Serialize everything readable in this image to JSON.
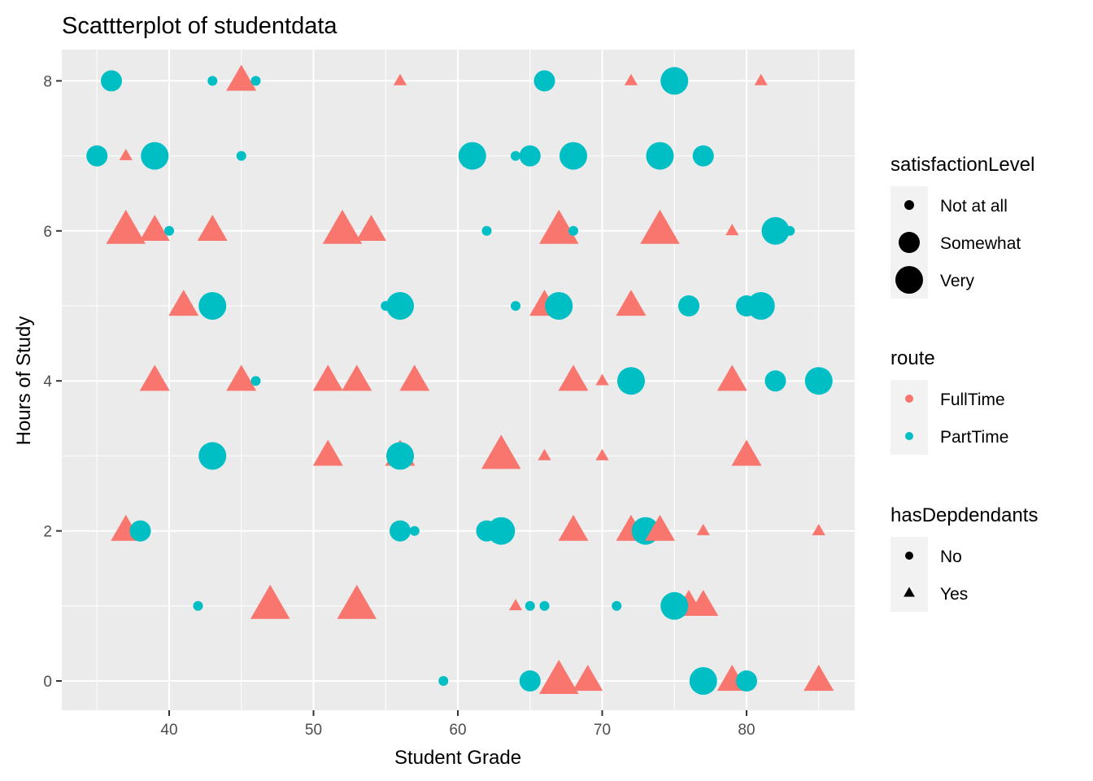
{
  "chart_data": {
    "type": "scatter",
    "title": "Scattterplot of studentdata",
    "xlabel": "Student Grade",
    "ylabel": "Hours of Study",
    "xlim": [
      32.5,
      87.5
    ],
    "ylim": [
      -0.4,
      8.4
    ],
    "xticks": [
      40,
      50,
      60,
      70,
      80
    ],
    "yticks": [
      0,
      2,
      4,
      6,
      8
    ],
    "grid": true,
    "legend_position": "right",
    "colors": {
      "FullTime": "#F8766D",
      "PartTime": "#00BFC4",
      "panel": "#EBEBEB",
      "grid": "#FFFFFF"
    },
    "legends": [
      {
        "title": "satisfactionLevel",
        "kind": "size",
        "items": [
          {
            "label": "Not at all",
            "size": "small"
          },
          {
            "label": "Somewhat",
            "size": "medium"
          },
          {
            "label": "Very",
            "size": "large"
          }
        ]
      },
      {
        "title": "route",
        "kind": "color",
        "items": [
          {
            "label": "FullTime",
            "color": "#F8766D"
          },
          {
            "label": "PartTime",
            "color": "#00BFC4"
          }
        ]
      },
      {
        "title": "hasDepdendants",
        "kind": "shape",
        "items": [
          {
            "label": "No",
            "shape": "circle"
          },
          {
            "label": "Yes",
            "shape": "triangle"
          }
        ]
      }
    ],
    "points": [
      {
        "x": 36,
        "y": 8,
        "route": "PartTime",
        "dep": "No",
        "sat": "Somewhat"
      },
      {
        "x": 43,
        "y": 8,
        "route": "PartTime",
        "dep": "No",
        "sat": "Not at all"
      },
      {
        "x": 45,
        "y": 8,
        "route": "FullTime",
        "dep": "Yes",
        "sat": "Somewhat"
      },
      {
        "x": 46,
        "y": 8,
        "route": "PartTime",
        "dep": "No",
        "sat": "Not at all"
      },
      {
        "x": 56,
        "y": 8,
        "route": "FullTime",
        "dep": "Yes",
        "sat": "Not at all"
      },
      {
        "x": 66,
        "y": 8,
        "route": "PartTime",
        "dep": "No",
        "sat": "Somewhat"
      },
      {
        "x": 72,
        "y": 8,
        "route": "FullTime",
        "dep": "Yes",
        "sat": "Not at all"
      },
      {
        "x": 75,
        "y": 8,
        "route": "PartTime",
        "dep": "No",
        "sat": "Very"
      },
      {
        "x": 81,
        "y": 8,
        "route": "FullTime",
        "dep": "Yes",
        "sat": "Not at all"
      },
      {
        "x": 35,
        "y": 7,
        "route": "PartTime",
        "dep": "No",
        "sat": "Somewhat"
      },
      {
        "x": 37,
        "y": 7,
        "route": "FullTime",
        "dep": "Yes",
        "sat": "Not at all"
      },
      {
        "x": 39,
        "y": 7,
        "route": "PartTime",
        "dep": "No",
        "sat": "Very"
      },
      {
        "x": 45,
        "y": 7,
        "route": "PartTime",
        "dep": "No",
        "sat": "Not at all"
      },
      {
        "x": 61,
        "y": 7,
        "route": "PartTime",
        "dep": "No",
        "sat": "Very"
      },
      {
        "x": 64,
        "y": 7,
        "route": "PartTime",
        "dep": "No",
        "sat": "Not at all"
      },
      {
        "x": 65,
        "y": 7,
        "route": "PartTime",
        "dep": "No",
        "sat": "Somewhat"
      },
      {
        "x": 68,
        "y": 7,
        "route": "PartTime",
        "dep": "No",
        "sat": "Very"
      },
      {
        "x": 74,
        "y": 7,
        "route": "PartTime",
        "dep": "No",
        "sat": "Very"
      },
      {
        "x": 77,
        "y": 7,
        "route": "PartTime",
        "dep": "No",
        "sat": "Somewhat"
      },
      {
        "x": 37,
        "y": 6,
        "route": "FullTime",
        "dep": "Yes",
        "sat": "Very"
      },
      {
        "x": 39,
        "y": 6,
        "route": "FullTime",
        "dep": "Yes",
        "sat": "Somewhat"
      },
      {
        "x": 40,
        "y": 6,
        "route": "PartTime",
        "dep": "No",
        "sat": "Not at all"
      },
      {
        "x": 43,
        "y": 6,
        "route": "FullTime",
        "dep": "Yes",
        "sat": "Somewhat"
      },
      {
        "x": 52,
        "y": 6,
        "route": "FullTime",
        "dep": "Yes",
        "sat": "Very"
      },
      {
        "x": 54,
        "y": 6,
        "route": "FullTime",
        "dep": "Yes",
        "sat": "Somewhat"
      },
      {
        "x": 62,
        "y": 6,
        "route": "PartTime",
        "dep": "No",
        "sat": "Not at all"
      },
      {
        "x": 67,
        "y": 6,
        "route": "FullTime",
        "dep": "Yes",
        "sat": "Very"
      },
      {
        "x": 68,
        "y": 6,
        "route": "PartTime",
        "dep": "No",
        "sat": "Not at all"
      },
      {
        "x": 74,
        "y": 6,
        "route": "FullTime",
        "dep": "Yes",
        "sat": "Very"
      },
      {
        "x": 79,
        "y": 6,
        "route": "FullTime",
        "dep": "Yes",
        "sat": "Not at all"
      },
      {
        "x": 82,
        "y": 6,
        "route": "PartTime",
        "dep": "No",
        "sat": "Very"
      },
      {
        "x": 83,
        "y": 6,
        "route": "PartTime",
        "dep": "No",
        "sat": "Not at all"
      },
      {
        "x": 41,
        "y": 5,
        "route": "FullTime",
        "dep": "Yes",
        "sat": "Somewhat"
      },
      {
        "x": 43,
        "y": 5,
        "route": "PartTime",
        "dep": "No",
        "sat": "Very"
      },
      {
        "x": 55,
        "y": 5,
        "route": "PartTime",
        "dep": "No",
        "sat": "Not at all"
      },
      {
        "x": 56,
        "y": 5,
        "route": "PartTime",
        "dep": "No",
        "sat": "Very"
      },
      {
        "x": 64,
        "y": 5,
        "route": "PartTime",
        "dep": "No",
        "sat": "Not at all"
      },
      {
        "x": 66,
        "y": 5,
        "route": "FullTime",
        "dep": "Yes",
        "sat": "Somewhat"
      },
      {
        "x": 67,
        "y": 5,
        "route": "PartTime",
        "dep": "No",
        "sat": "Very"
      },
      {
        "x": 72,
        "y": 5,
        "route": "FullTime",
        "dep": "Yes",
        "sat": "Somewhat"
      },
      {
        "x": 76,
        "y": 5,
        "route": "PartTime",
        "dep": "No",
        "sat": "Somewhat"
      },
      {
        "x": 80,
        "y": 5,
        "route": "PartTime",
        "dep": "No",
        "sat": "Somewhat"
      },
      {
        "x": 81,
        "y": 5,
        "route": "PartTime",
        "dep": "No",
        "sat": "Very"
      },
      {
        "x": 39,
        "y": 4,
        "route": "FullTime",
        "dep": "Yes",
        "sat": "Somewhat"
      },
      {
        "x": 45,
        "y": 4,
        "route": "FullTime",
        "dep": "Yes",
        "sat": "Somewhat"
      },
      {
        "x": 46,
        "y": 4,
        "route": "PartTime",
        "dep": "No",
        "sat": "Not at all"
      },
      {
        "x": 51,
        "y": 4,
        "route": "FullTime",
        "dep": "Yes",
        "sat": "Somewhat"
      },
      {
        "x": 53,
        "y": 4,
        "route": "FullTime",
        "dep": "Yes",
        "sat": "Somewhat"
      },
      {
        "x": 57,
        "y": 4,
        "route": "FullTime",
        "dep": "Yes",
        "sat": "Somewhat"
      },
      {
        "x": 68,
        "y": 4,
        "route": "FullTime",
        "dep": "Yes",
        "sat": "Somewhat"
      },
      {
        "x": 70,
        "y": 4,
        "route": "FullTime",
        "dep": "Yes",
        "sat": "Not at all"
      },
      {
        "x": 72,
        "y": 4,
        "route": "PartTime",
        "dep": "No",
        "sat": "Very"
      },
      {
        "x": 79,
        "y": 4,
        "route": "FullTime",
        "dep": "Yes",
        "sat": "Somewhat"
      },
      {
        "x": 82,
        "y": 4,
        "route": "PartTime",
        "dep": "No",
        "sat": "Somewhat"
      },
      {
        "x": 85,
        "y": 4,
        "route": "PartTime",
        "dep": "No",
        "sat": "Very"
      },
      {
        "x": 43,
        "y": 3,
        "route": "PartTime",
        "dep": "No",
        "sat": "Very"
      },
      {
        "x": 51,
        "y": 3,
        "route": "FullTime",
        "dep": "Yes",
        "sat": "Somewhat"
      },
      {
        "x": 56,
        "y": 3,
        "route": "FullTime",
        "dep": "Yes",
        "sat": "Somewhat"
      },
      {
        "x": 56,
        "y": 3,
        "route": "FullTime",
        "dep": "Yes",
        "sat": "Not at all"
      },
      {
        "x": 56,
        "y": 3,
        "route": "PartTime",
        "dep": "No",
        "sat": "Very"
      },
      {
        "x": 63,
        "y": 3,
        "route": "FullTime",
        "dep": "Yes",
        "sat": "Very"
      },
      {
        "x": 66,
        "y": 3,
        "route": "FullTime",
        "dep": "Yes",
        "sat": "Not at all"
      },
      {
        "x": 70,
        "y": 3,
        "route": "FullTime",
        "dep": "Yes",
        "sat": "Not at all"
      },
      {
        "x": 80,
        "y": 3,
        "route": "FullTime",
        "dep": "Yes",
        "sat": "Somewhat"
      },
      {
        "x": 37,
        "y": 2,
        "route": "FullTime",
        "dep": "Yes",
        "sat": "Somewhat"
      },
      {
        "x": 38,
        "y": 2,
        "route": "PartTime",
        "dep": "No",
        "sat": "Somewhat"
      },
      {
        "x": 56,
        "y": 2,
        "route": "PartTime",
        "dep": "No",
        "sat": "Somewhat"
      },
      {
        "x": 57,
        "y": 2,
        "route": "PartTime",
        "dep": "No",
        "sat": "Not at all"
      },
      {
        "x": 62,
        "y": 2,
        "route": "PartTime",
        "dep": "No",
        "sat": "Somewhat"
      },
      {
        "x": 63,
        "y": 2,
        "route": "PartTime",
        "dep": "No",
        "sat": "Very"
      },
      {
        "x": 68,
        "y": 2,
        "route": "FullTime",
        "dep": "Yes",
        "sat": "Somewhat"
      },
      {
        "x": 72,
        "y": 2,
        "route": "FullTime",
        "dep": "Yes",
        "sat": "Somewhat"
      },
      {
        "x": 73,
        "y": 2,
        "route": "PartTime",
        "dep": "No",
        "sat": "Very"
      },
      {
        "x": 74,
        "y": 2,
        "route": "FullTime",
        "dep": "Yes",
        "sat": "Somewhat"
      },
      {
        "x": 77,
        "y": 2,
        "route": "FullTime",
        "dep": "Yes",
        "sat": "Not at all"
      },
      {
        "x": 85,
        "y": 2,
        "route": "FullTime",
        "dep": "Yes",
        "sat": "Not at all"
      },
      {
        "x": 42,
        "y": 1,
        "route": "PartTime",
        "dep": "No",
        "sat": "Not at all"
      },
      {
        "x": 47,
        "y": 1,
        "route": "FullTime",
        "dep": "Yes",
        "sat": "Very"
      },
      {
        "x": 53,
        "y": 1,
        "route": "FullTime",
        "dep": "Yes",
        "sat": "Very"
      },
      {
        "x": 64,
        "y": 1,
        "route": "FullTime",
        "dep": "Yes",
        "sat": "Not at all"
      },
      {
        "x": 65,
        "y": 1,
        "route": "PartTime",
        "dep": "No",
        "sat": "Not at all"
      },
      {
        "x": 66,
        "y": 1,
        "route": "PartTime",
        "dep": "No",
        "sat": "Not at all"
      },
      {
        "x": 71,
        "y": 1,
        "route": "PartTime",
        "dep": "No",
        "sat": "Not at all"
      },
      {
        "x": 76,
        "y": 1,
        "route": "FullTime",
        "dep": "Yes",
        "sat": "Somewhat"
      },
      {
        "x": 77,
        "y": 1,
        "route": "FullTime",
        "dep": "Yes",
        "sat": "Somewhat"
      },
      {
        "x": 75,
        "y": 1,
        "route": "PartTime",
        "dep": "No",
        "sat": "Very"
      },
      {
        "x": 59,
        "y": 0,
        "route": "PartTime",
        "dep": "No",
        "sat": "Not at all"
      },
      {
        "x": 65,
        "y": 0,
        "route": "PartTime",
        "dep": "No",
        "sat": "Somewhat"
      },
      {
        "x": 67,
        "y": 0,
        "route": "FullTime",
        "dep": "Yes",
        "sat": "Very"
      },
      {
        "x": 69,
        "y": 0,
        "route": "FullTime",
        "dep": "Yes",
        "sat": "Somewhat"
      },
      {
        "x": 77,
        "y": 0,
        "route": "PartTime",
        "dep": "No",
        "sat": "Very"
      },
      {
        "x": 79,
        "y": 0,
        "route": "FullTime",
        "dep": "Yes",
        "sat": "Somewhat"
      },
      {
        "x": 80,
        "y": 0,
        "route": "PartTime",
        "dep": "No",
        "sat": "Somewhat"
      },
      {
        "x": 85,
        "y": 0,
        "route": "FullTime",
        "dep": "Yes",
        "sat": "Somewhat"
      }
    ]
  }
}
